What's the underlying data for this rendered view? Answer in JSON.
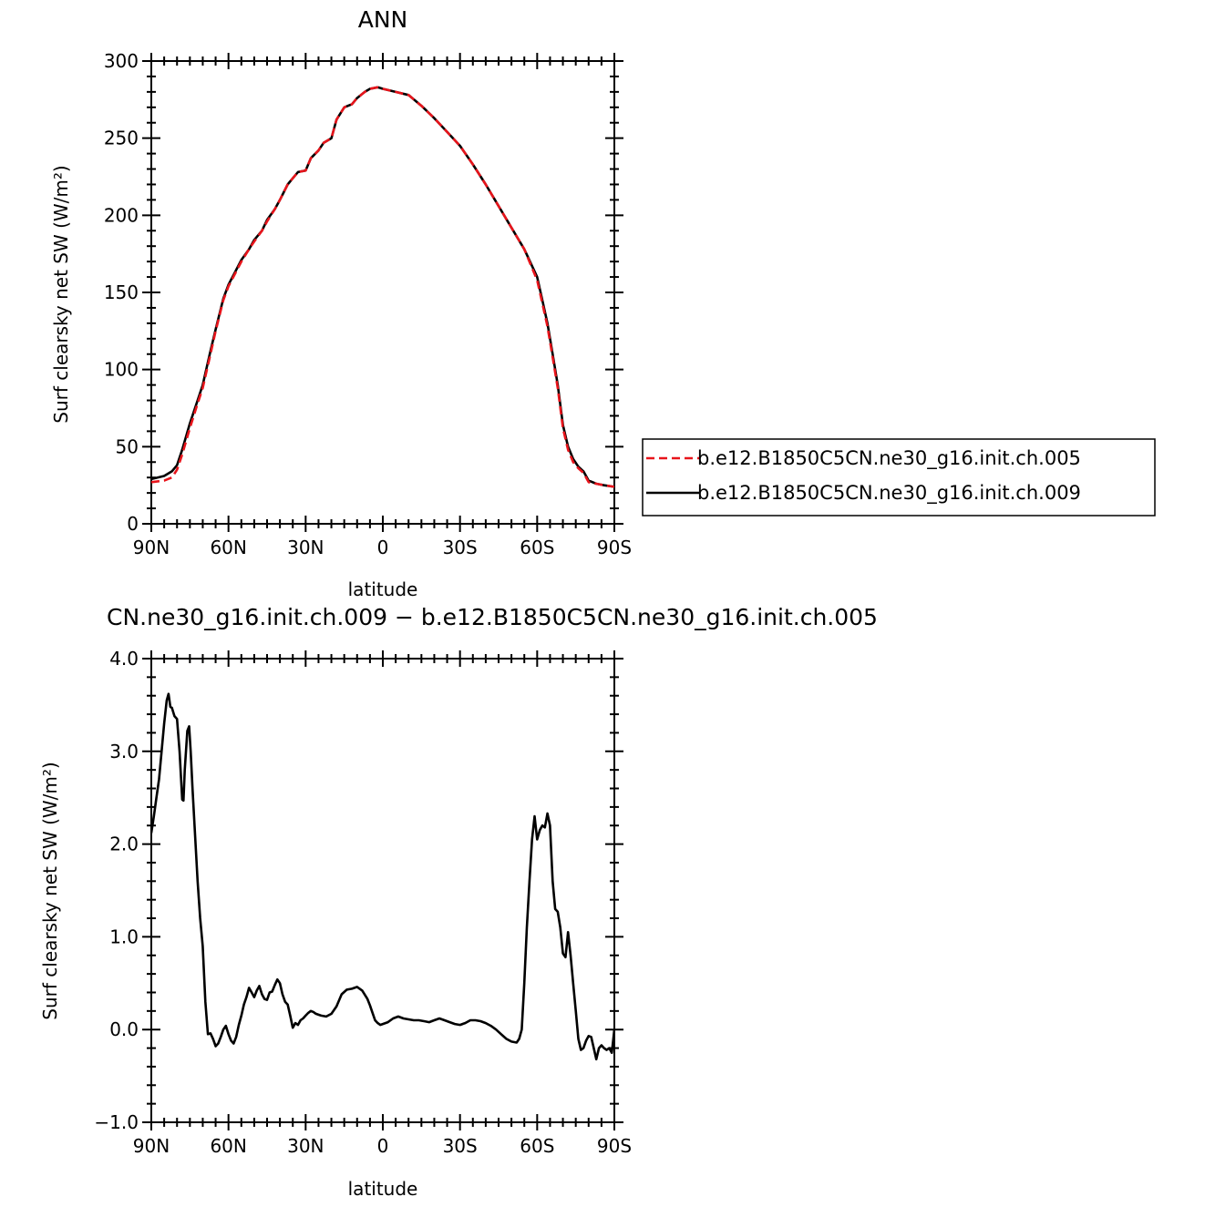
{
  "chart_data": [
    {
      "type": "line",
      "title": "ANN",
      "xlabel": "latitude",
      "ylabel": "Surf clearsky net SW (W/m²)",
      "xlim": [
        90,
        -90
      ],
      "ylim": [
        0,
        300
      ],
      "x_direction": "north-to-south",
      "xticks": [
        {
          "value": 90,
          "label": "90N"
        },
        {
          "value": 60,
          "label": "60N"
        },
        {
          "value": 30,
          "label": "30N"
        },
        {
          "value": 0,
          "label": "0"
        },
        {
          "value": -30,
          "label": "30S"
        },
        {
          "value": -60,
          "label": "60S"
        },
        {
          "value": -90,
          "label": "90S"
        }
      ],
      "yticks": [
        {
          "value": 0,
          "label": "0"
        },
        {
          "value": 50,
          "label": "50"
        },
        {
          "value": 100,
          "label": "100"
        },
        {
          "value": 150,
          "label": "150"
        },
        {
          "value": 200,
          "label": "200"
        },
        {
          "value": 250,
          "label": "250"
        },
        {
          "value": 300,
          "label": "300"
        }
      ],
      "legend_position": "right",
      "series": [
        {
          "name": "b.e12.B1850C5CN.ne30_g16.init.ch.005",
          "color": "#e8141b",
          "dash": "dashed",
          "x": [
            90,
            85,
            82,
            80,
            78,
            75,
            72,
            70,
            67,
            65,
            62,
            60,
            55,
            52,
            50,
            47,
            45,
            42,
            40,
            37,
            35,
            33,
            30,
            28,
            25,
            23,
            20,
            18,
            15,
            12,
            10,
            7,
            5,
            2,
            0,
            -5,
            -10,
            -15,
            -20,
            -25,
            -30,
            -35,
            -40,
            -45,
            -50,
            -55,
            -60,
            -62,
            -64,
            -66,
            -68,
            -70,
            -72,
            -74,
            -76,
            -78,
            -80,
            -83,
            -86,
            -90
          ],
          "y": [
            27,
            28,
            30,
            35,
            45,
            62,
            78,
            88,
            110,
            125,
            145,
            154,
            170,
            178,
            183,
            190,
            196,
            204,
            210,
            220,
            224,
            228,
            229,
            237,
            242,
            247,
            250,
            262,
            270,
            272,
            276,
            280,
            282,
            283,
            282,
            280,
            278,
            271,
            263,
            254,
            245,
            233,
            220,
            206,
            192,
            178,
            158,
            143,
            128,
            108,
            88,
            62,
            48,
            40,
            36,
            33,
            27,
            26,
            25,
            24
          ]
        },
        {
          "name": "b.e12.B1850C5CN.ne30_g16.init.ch.009",
          "color": "#000000",
          "dash": "solid",
          "x": [
            90,
            85,
            82,
            80,
            78,
            75,
            72,
            70,
            67,
            65,
            62,
            60,
            55,
            52,
            50,
            47,
            45,
            42,
            40,
            37,
            35,
            33,
            30,
            28,
            25,
            23,
            20,
            18,
            15,
            12,
            10,
            7,
            5,
            2,
            0,
            -5,
            -10,
            -15,
            -20,
            -25,
            -30,
            -35,
            -40,
            -45,
            -50,
            -55,
            -60,
            -62,
            -64,
            -66,
            -68,
            -70,
            -72,
            -74,
            -76,
            -78,
            -80,
            -83,
            -86,
            -90
          ],
          "y": [
            29,
            31,
            34,
            38,
            48,
            65,
            80,
            90,
            112,
            126,
            146,
            155,
            171,
            178,
            184,
            190,
            197,
            204,
            210,
            220,
            224,
            228,
            229,
            237,
            242,
            247,
            250,
            262,
            270,
            272,
            276,
            280,
            282,
            283,
            282,
            280,
            278,
            271,
            263,
            254,
            245,
            233,
            220,
            206,
            192,
            178,
            160,
            145,
            130,
            110,
            90,
            64,
            50,
            42,
            37,
            34,
            28,
            26,
            25,
            24
          ]
        }
      ]
    },
    {
      "type": "line",
      "title": "CN.ne30_g16.init.ch.009 − b.e12.B1850C5CN.ne30_g16.init.ch.005",
      "xlabel": "latitude",
      "ylabel": "Surf clearsky net SW (W/m²)",
      "xlim": [
        90,
        -90
      ],
      "ylim": [
        -1.0,
        4.0
      ],
      "x_direction": "north-to-south",
      "xticks": [
        {
          "value": 90,
          "label": "90N"
        },
        {
          "value": 60,
          "label": "60N"
        },
        {
          "value": 30,
          "label": "30N"
        },
        {
          "value": 0,
          "label": "0"
        },
        {
          "value": -30,
          "label": "30S"
        },
        {
          "value": -60,
          "label": "60S"
        },
        {
          "value": -90,
          "label": "90S"
        }
      ],
      "yticks": [
        {
          "value": -1.0,
          "label": "−1.0"
        },
        {
          "value": 0.0,
          "label": "0.0"
        },
        {
          "value": 1.0,
          "label": "1.0"
        },
        {
          "value": 2.0,
          "label": "2.0"
        },
        {
          "value": 3.0,
          "label": "3.0"
        },
        {
          "value": 4.0,
          "label": "4.0"
        }
      ],
      "series": [
        {
          "name": "",
          "color": "#000000",
          "dash": "solid",
          "x": [
            90,
            89,
            88,
            87,
            86,
            85,
            84,
            83.3,
            82.6,
            82,
            81,
            80,
            79,
            78,
            77.5,
            77,
            76,
            75.3,
            74.7,
            74,
            73,
            72,
            71,
            70,
            69,
            68,
            67,
            66,
            65,
            64,
            63,
            62,
            61,
            60,
            59,
            58,
            57,
            56,
            55,
            54,
            53,
            52,
            51,
            50,
            49,
            48,
            47,
            46,
            45,
            44,
            43,
            42,
            41,
            40,
            39,
            38,
            37,
            36,
            35,
            34,
            33,
            32,
            31,
            30,
            29,
            28,
            27,
            26,
            25,
            24,
            22,
            20,
            18,
            16,
            14,
            12,
            10,
            8,
            6,
            5,
            4,
            3,
            2,
            1,
            0,
            -2,
            -4,
            -6,
            -8,
            -10,
            -12,
            -14,
            -16,
            -18,
            -20,
            -22,
            -24,
            -26,
            -28,
            -30,
            -32,
            -34,
            -36,
            -38,
            -40,
            -42,
            -44,
            -46,
            -48,
            -50,
            -52,
            -53,
            -54,
            -55,
            -56,
            -57,
            -58,
            -59,
            -60,
            -61,
            -62,
            -63,
            -64,
            -65,
            -66,
            -67,
            -68,
            -69,
            -70,
            -71,
            -72,
            -73,
            -74,
            -75,
            -76,
            -77,
            -78,
            -79,
            -80,
            -81,
            -82,
            -83,
            -84,
            -85,
            -86,
            -87,
            -88,
            -89,
            -90
          ],
          "y": [
            2.12,
            2.3,
            2.5,
            2.7,
            3.0,
            3.3,
            3.55,
            3.62,
            3.48,
            3.47,
            3.38,
            3.35,
            3.0,
            2.48,
            2.47,
            2.8,
            3.22,
            3.27,
            3.0,
            2.6,
            2.1,
            1.6,
            1.2,
            0.9,
            0.3,
            -0.05,
            -0.04,
            -0.1,
            -0.18,
            -0.15,
            -0.08,
            0.0,
            0.04,
            -0.05,
            -0.12,
            -0.15,
            -0.08,
            0.05,
            0.15,
            0.27,
            0.35,
            0.45,
            0.4,
            0.35,
            0.42,
            0.47,
            0.38,
            0.33,
            0.32,
            0.4,
            0.41,
            0.48,
            0.54,
            0.5,
            0.38,
            0.3,
            0.27,
            0.15,
            0.02,
            0.07,
            0.05,
            0.1,
            0.12,
            0.15,
            0.18,
            0.2,
            0.19,
            0.17,
            0.16,
            0.15,
            0.14,
            0.17,
            0.25,
            0.38,
            0.43,
            0.44,
            0.46,
            0.42,
            0.33,
            0.26,
            0.18,
            0.1,
            0.07,
            0.05,
            0.06,
            0.08,
            0.12,
            0.14,
            0.12,
            0.11,
            0.1,
            0.1,
            0.09,
            0.08,
            0.1,
            0.12,
            0.1,
            0.08,
            0.06,
            0.05,
            0.07,
            0.1,
            0.1,
            0.09,
            0.07,
            0.04,
            0.0,
            -0.05,
            -0.1,
            -0.13,
            -0.14,
            -0.1,
            0.0,
            0.5,
            1.1,
            1.6,
            2.05,
            2.3,
            2.05,
            2.15,
            2.2,
            2.18,
            2.33,
            2.2,
            1.6,
            1.3,
            1.27,
            1.1,
            0.82,
            0.78,
            1.05,
            0.8,
            0.5,
            0.2,
            -0.1,
            -0.22,
            -0.2,
            -0.12,
            -0.07,
            -0.08,
            -0.2,
            -0.32,
            -0.2,
            -0.17,
            -0.2,
            -0.22,
            -0.2,
            -0.25,
            0.0
          ]
        }
      ]
    }
  ]
}
